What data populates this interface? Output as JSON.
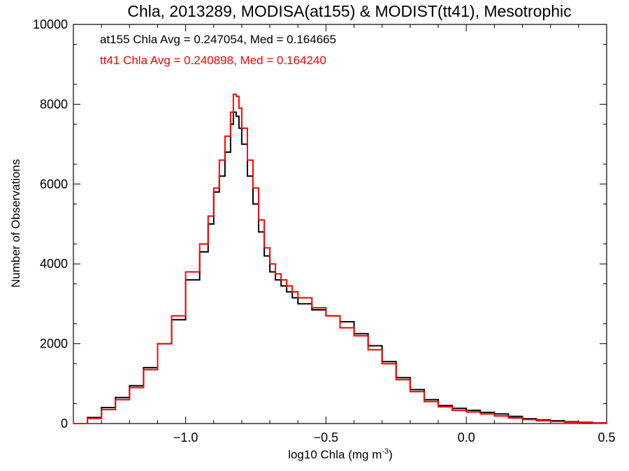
{
  "chart_data": {
    "type": "line",
    "title": "Chla, 2013289, MODISA(at155) & MODIST(tt41), Mesotrophic",
    "xlabel": "log10 Chla (mg m",
    "xlabel_sup": "-3",
    "xlabel_end": ")",
    "ylabel": "Number of Observations",
    "xlim": [
      -1.4,
      0.5
    ],
    "ylim": [
      0,
      10000
    ],
    "xticks": [
      -1.0,
      -0.5,
      0.0,
      0.5
    ],
    "xtick_labels": [
      "−1.0",
      "−0.5",
      "0.0",
      "0.5"
    ],
    "yticks": [
      0,
      2000,
      4000,
      6000,
      8000,
      10000
    ],
    "ytick_labels": [
      "0",
      "2000",
      "4000",
      "6000",
      "8000",
      "10000"
    ],
    "grid": false,
    "step": true,
    "annotations": [
      {
        "text": "at155 Chla Avg = 0.247054, Med = 0.164665",
        "color": "#000000"
      },
      {
        "text": "tt41 Chla Avg = 0.240898, Med = 0.164240",
        "color": "#ff0000"
      }
    ],
    "series": [
      {
        "color": "#000000",
        "x": [
          -1.4,
          -1.35,
          -1.3,
          -1.25,
          -1.2,
          -1.15,
          -1.1,
          -1.05,
          -1.0,
          -0.95,
          -0.92,
          -0.9,
          -0.88,
          -0.86,
          -0.84,
          -0.83,
          -0.82,
          -0.81,
          -0.8,
          -0.78,
          -0.76,
          -0.74,
          -0.72,
          -0.7,
          -0.68,
          -0.66,
          -0.64,
          -0.62,
          -0.6,
          -0.55,
          -0.5,
          -0.45,
          -0.4,
          -0.35,
          -0.3,
          -0.25,
          -0.2,
          -0.15,
          -0.1,
          -0.05,
          0.0,
          0.05,
          0.1,
          0.15,
          0.2,
          0.25,
          0.3,
          0.35,
          0.4,
          0.45,
          0.5
        ],
        "y": [
          0,
          150,
          400,
          650,
          950,
          1400,
          2000,
          2600,
          3600,
          4300,
          5000,
          5800,
          6200,
          6800,
          7500,
          7800,
          7700,
          7400,
          7000,
          6200,
          5500,
          4800,
          4200,
          3800,
          3600,
          3450,
          3300,
          3150,
          3000,
          2850,
          2700,
          2550,
          2250,
          1950,
          1550,
          1150,
          850,
          600,
          450,
          380,
          330,
          280,
          240,
          180,
          120,
          90,
          70,
          45,
          30,
          15,
          10
        ]
      },
      {
        "color": "#ff0000",
        "x": [
          -1.4,
          -1.35,
          -1.3,
          -1.25,
          -1.2,
          -1.15,
          -1.1,
          -1.05,
          -1.0,
          -0.95,
          -0.92,
          -0.9,
          -0.88,
          -0.86,
          -0.84,
          -0.83,
          -0.82,
          -0.81,
          -0.8,
          -0.78,
          -0.76,
          -0.74,
          -0.72,
          -0.7,
          -0.68,
          -0.66,
          -0.64,
          -0.62,
          -0.6,
          -0.55,
          -0.5,
          -0.45,
          -0.4,
          -0.35,
          -0.3,
          -0.25,
          -0.2,
          -0.15,
          -0.1,
          -0.05,
          0.0,
          0.05,
          0.1,
          0.15,
          0.2,
          0.25,
          0.3,
          0.35,
          0.4,
          0.45,
          0.5
        ],
        "y": [
          0,
          130,
          350,
          600,
          900,
          1350,
          2000,
          2700,
          3800,
          4500,
          5200,
          5900,
          6600,
          7200,
          7800,
          8250,
          8200,
          7900,
          7400,
          6600,
          5900,
          5100,
          4400,
          4000,
          3750,
          3600,
          3450,
          3300,
          3150,
          2900,
          2700,
          2400,
          2200,
          1850,
          1500,
          1100,
          800,
          550,
          420,
          330,
          290,
          240,
          190,
          140,
          100,
          70,
          50,
          35,
          20,
          10,
          5
        ]
      }
    ]
  }
}
